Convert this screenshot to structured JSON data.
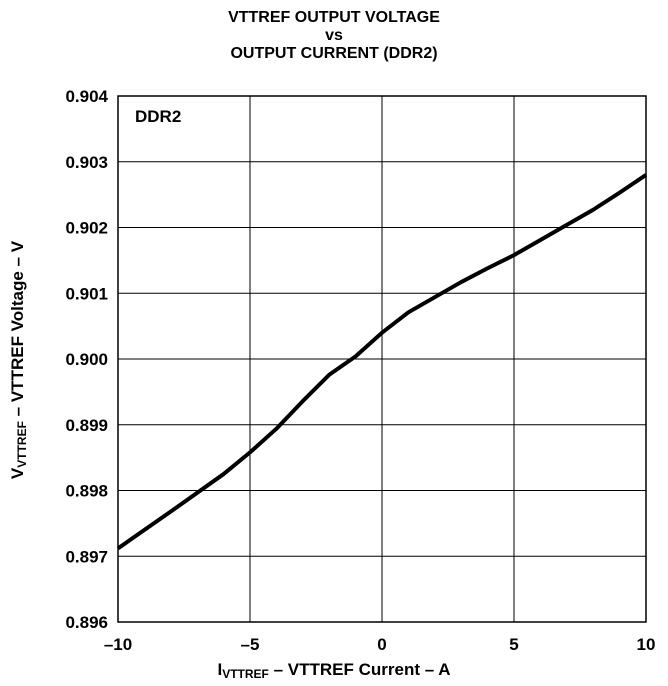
{
  "title_lines": [
    "VTTREF OUTPUT VOLTAGE",
    "vs",
    "OUTPUT CURRENT (DDR2)"
  ],
  "chart_data": {
    "type": "line",
    "title": "VTTREF OUTPUT VOLTAGE vs OUTPUT CURRENT (DDR2)",
    "annotation": "DDR2",
    "ylabel": {
      "main": "V",
      "sub": "VTTREF",
      "rest": " – VTTREF Voltage – V"
    },
    "xlabel": {
      "main": "I",
      "sub": "VTTREF",
      "rest": " – VTTREF Current – A"
    },
    "xlim": [
      -10,
      10
    ],
    "ylim": [
      0.896,
      0.904
    ],
    "x_ticks": [
      -10,
      -5,
      0,
      5,
      10
    ],
    "x_tick_labels": [
      "–10",
      "–5",
      "0",
      "5",
      "10"
    ],
    "y_ticks": [
      0.896,
      0.897,
      0.898,
      0.899,
      0.9,
      0.901,
      0.902,
      0.903,
      0.904
    ],
    "y_tick_labels": [
      "0.896",
      "0.897",
      "0.898",
      "0.899",
      "0.900",
      "0.901",
      "0.902",
      "0.903",
      "0.904"
    ],
    "grid": true,
    "series": [
      {
        "color": "#000000",
        "x": [
          -10,
          -8,
          -6,
          -5,
          -4,
          -3,
          -2,
          -1,
          0,
          1,
          2,
          3,
          4,
          5,
          6,
          7,
          8,
          9,
          10
        ],
        "y": [
          0.89712,
          0.89768,
          0.89825,
          0.89858,
          0.89894,
          0.89936,
          0.89976,
          0.90004,
          0.9004,
          0.90071,
          0.90094,
          0.90117,
          0.90138,
          0.90158,
          0.90181,
          0.90204,
          0.90227,
          0.90253,
          0.9028
        ]
      }
    ]
  }
}
